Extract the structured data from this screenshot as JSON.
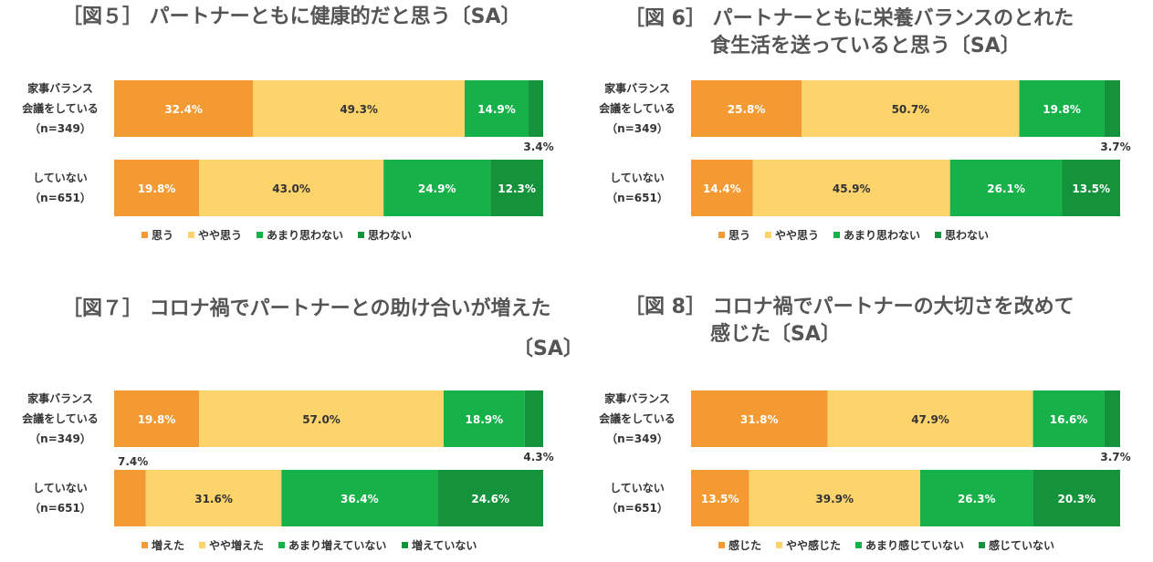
{
  "colors": [
    "#f39a33",
    "#fdd36c",
    "#17b14a",
    "#14923c"
  ],
  "chart_data": [
    {
      "type": "bar",
      "orientation": "horizontal-stacked-100",
      "title_lines": [
        "［図５］ パートナーともに健康的だと思う〔SA〕"
      ],
      "categories": [
        [
          "家事バランス",
          "会議をしている",
          "（n=349）"
        ],
        [
          "していない",
          "（n=651）"
        ]
      ],
      "series": [
        {
          "name": "思う",
          "values": [
            32.4,
            19.8
          ]
        },
        {
          "name": "やや思う",
          "values": [
            49.3,
            43.0
          ]
        },
        {
          "name": "あまり思わない",
          "values": [
            14.9,
            24.9
          ]
        },
        {
          "name": "思わない",
          "values": [
            3.4,
            12.3
          ]
        }
      ],
      "labels": [
        [
          "32.4%",
          "49.3%",
          "14.9%",
          "3.4%"
        ],
        [
          "19.8%",
          "43.0%",
          "24.9%",
          "12.3%"
        ]
      ],
      "ylim": [
        0,
        100
      ]
    },
    {
      "type": "bar",
      "orientation": "horizontal-stacked-100",
      "title_lines": [
        "［図 6］ パートナーともに栄養バランスのとれた",
        "食生活を送っていると思う〔SA〕"
      ],
      "categories": [
        [
          "家事バランス",
          "会議をしている",
          "（n=349）"
        ],
        [
          "していない",
          "（n=651）"
        ]
      ],
      "series": [
        {
          "name": "思う",
          "values": [
            25.8,
            14.4
          ]
        },
        {
          "name": "やや思う",
          "values": [
            50.7,
            45.9
          ]
        },
        {
          "name": "あまり思わない",
          "values": [
            19.8,
            26.1
          ]
        },
        {
          "name": "思わない",
          "values": [
            3.7,
            13.5
          ]
        }
      ],
      "labels": [
        [
          "25.8%",
          "50.7%",
          "19.8%",
          "3.7%"
        ],
        [
          "14.4%",
          "45.9%",
          "26.1%",
          "13.5%"
        ]
      ],
      "ylim": [
        0,
        100
      ]
    },
    {
      "type": "bar",
      "orientation": "horizontal-stacked-100",
      "title_lines": [
        "［図７］ コロナ禍でパートナーとの助け合いが増えた",
        "〔SA〕"
      ],
      "categories": [
        [
          "家事バランス",
          "会議をしている",
          "（n=349）"
        ],
        [
          "していない",
          "（n=651）"
        ]
      ],
      "series": [
        {
          "name": "増えた",
          "values": [
            19.8,
            7.4
          ]
        },
        {
          "name": "やや増えた",
          "values": [
            57.0,
            31.6
          ]
        },
        {
          "name": "あまり増えていない",
          "values": [
            18.9,
            36.4
          ]
        },
        {
          "name": "増えていない",
          "values": [
            4.3,
            24.6
          ]
        }
      ],
      "labels": [
        [
          "19.8%",
          "57.0%",
          "18.9%",
          "4.3%"
        ],
        [
          "7.4%",
          "31.6%",
          "36.4%",
          "24.6%"
        ]
      ],
      "ylim": [
        0,
        100
      ]
    },
    {
      "type": "bar",
      "orientation": "horizontal-stacked-100",
      "title_lines": [
        "［図 8］ コロナ禍でパートナーの大切さを改めて",
        "感じた〔SA〕"
      ],
      "categories": [
        [
          "家事バランス",
          "会議をしている",
          "（n=349）"
        ],
        [
          "していない",
          "（n=651）"
        ]
      ],
      "series": [
        {
          "name": "感じた",
          "values": [
            31.8,
            13.5
          ]
        },
        {
          "name": "やや感じた",
          "values": [
            47.9,
            39.9
          ]
        },
        {
          "name": "あまり感じていない",
          "values": [
            16.6,
            26.3
          ]
        },
        {
          "name": "感じていない",
          "values": [
            3.7,
            20.3
          ]
        }
      ],
      "labels": [
        [
          "31.8%",
          "47.9%",
          "16.6%",
          "3.7%"
        ],
        [
          "13.5%",
          "39.9%",
          "26.3%",
          "20.3%"
        ]
      ],
      "ylim": [
        0,
        100
      ]
    }
  ]
}
